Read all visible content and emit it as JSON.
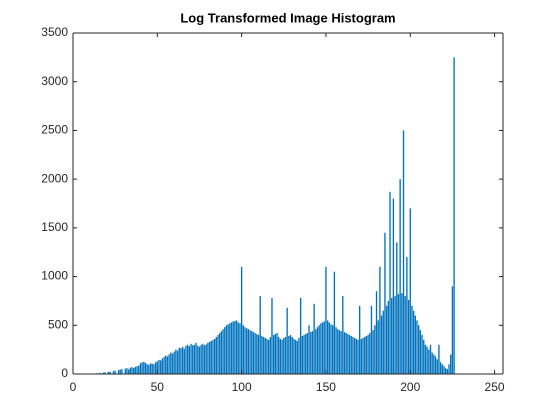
{
  "chart_data": {
    "type": "bar",
    "title": "Log Transformed Image Histogram",
    "x": [
      0,
      1,
      2,
      3,
      4,
      5,
      6,
      7,
      8,
      9,
      10,
      11,
      12,
      13,
      14,
      15,
      16,
      17,
      18,
      19,
      20,
      21,
      22,
      23,
      24,
      25,
      26,
      27,
      28,
      29,
      30,
      31,
      32,
      33,
      34,
      35,
      36,
      37,
      38,
      39,
      40,
      41,
      42,
      43,
      44,
      45,
      46,
      47,
      48,
      49,
      50,
      51,
      52,
      53,
      54,
      55,
      56,
      57,
      58,
      59,
      60,
      61,
      62,
      63,
      64,
      65,
      66,
      67,
      68,
      69,
      70,
      71,
      72,
      73,
      74,
      75,
      76,
      77,
      78,
      79,
      80,
      81,
      82,
      83,
      84,
      85,
      86,
      87,
      88,
      89,
      90,
      91,
      92,
      93,
      94,
      95,
      96,
      97,
      98,
      99,
      100,
      101,
      102,
      103,
      104,
      105,
      106,
      107,
      108,
      109,
      110,
      111,
      112,
      113,
      114,
      115,
      116,
      117,
      118,
      119,
      120,
      121,
      122,
      123,
      124,
      125,
      126,
      127,
      128,
      129,
      130,
      131,
      132,
      133,
      134,
      135,
      136,
      137,
      138,
      139,
      140,
      141,
      142,
      143,
      144,
      145,
      146,
      147,
      148,
      149,
      150,
      151,
      152,
      153,
      154,
      155,
      156,
      157,
      158,
      159,
      160,
      161,
      162,
      163,
      164,
      165,
      166,
      167,
      168,
      169,
      170,
      171,
      172,
      173,
      174,
      175,
      176,
      177,
      178,
      179,
      180,
      181,
      182,
      183,
      184,
      185,
      186,
      187,
      188,
      189,
      190,
      191,
      192,
      193,
      194,
      195,
      196,
      197,
      198,
      199,
      200,
      201,
      202,
      203,
      204,
      205,
      206,
      207,
      208,
      209,
      210,
      211,
      212,
      213,
      214,
      215,
      216,
      217,
      218,
      219,
      220,
      221,
      222,
      223,
      224,
      225,
      226,
      227,
      228,
      229,
      230,
      231,
      232,
      233,
      234,
      235,
      236,
      237,
      238,
      239,
      240,
      241,
      242,
      243,
      244,
      245,
      246,
      247,
      248,
      249,
      250,
      251,
      252,
      253,
      254,
      255
    ],
    "values": [
      0,
      0,
      0,
      0,
      0,
      0,
      0,
      0,
      0,
      0,
      0,
      0,
      0,
      5,
      8,
      0,
      12,
      0,
      15,
      18,
      0,
      22,
      25,
      0,
      30,
      35,
      0,
      40,
      45,
      50,
      0,
      55,
      60,
      48,
      65,
      70,
      62,
      75,
      80,
      85,
      110,
      120,
      125,
      115,
      100,
      95,
      110,
      105,
      100,
      120,
      130,
      145,
      140,
      160,
      175,
      190,
      180,
      200,
      220,
      210,
      230,
      250,
      240,
      270,
      265,
      280,
      260,
      290,
      300,
      285,
      310,
      295,
      300,
      320,
      290,
      280,
      300,
      310,
      295,
      305,
      320,
      330,
      340,
      350,
      360,
      380,
      400,
      420,
      440,
      460,
      480,
      500,
      510,
      520,
      530,
      540,
      545,
      550,
      530,
      520,
      1100,
      500,
      480,
      470,
      460,
      450,
      440,
      430,
      420,
      410,
      400,
      800,
      390,
      380,
      370,
      360,
      350,
      380,
      780,
      400,
      410,
      420,
      380,
      360,
      350,
      370,
      380,
      680,
      390,
      400,
      380,
      360,
      350,
      340,
      370,
      780,
      390,
      400,
      410,
      420,
      500,
      430,
      440,
      720,
      460,
      480,
      500,
      520,
      530,
      540,
      1100,
      550,
      530,
      510,
      500,
      1050,
      480,
      460,
      450,
      440,
      800,
      430,
      420,
      410,
      400,
      390,
      380,
      370,
      360,
      350,
      700,
      360,
      370,
      380,
      390,
      400,
      420,
      700,
      450,
      500,
      850,
      550,
      1100,
      600,
      650,
      1450,
      700,
      750,
      1870,
      780,
      1800,
      800,
      1350,
      820,
      2000,
      830,
      2500,
      800,
      1200,
      760,
      1700,
      700,
      650,
      600,
      550,
      500,
      450,
      400,
      350,
      300,
      280,
      250,
      300,
      220,
      200,
      180,
      150,
      300,
      120,
      100,
      80,
      60,
      50,
      100,
      200,
      900,
      3250,
      0,
      0,
      0,
      0,
      0,
      0,
      0,
      0,
      0,
      0,
      0,
      0,
      0,
      0,
      0,
      0,
      0,
      0,
      0,
      0,
      0,
      0,
      0,
      0,
      0,
      0,
      0,
      0,
      0
    ],
    "color": "#0072bd",
    "xlim": [
      0,
      255
    ],
    "xticks": [
      0,
      50,
      100,
      150,
      200,
      250
    ],
    "ylim": [
      0,
      3500
    ],
    "yticks": [
      0,
      500,
      1000,
      1500,
      2000,
      2500,
      3000,
      3500
    ]
  }
}
